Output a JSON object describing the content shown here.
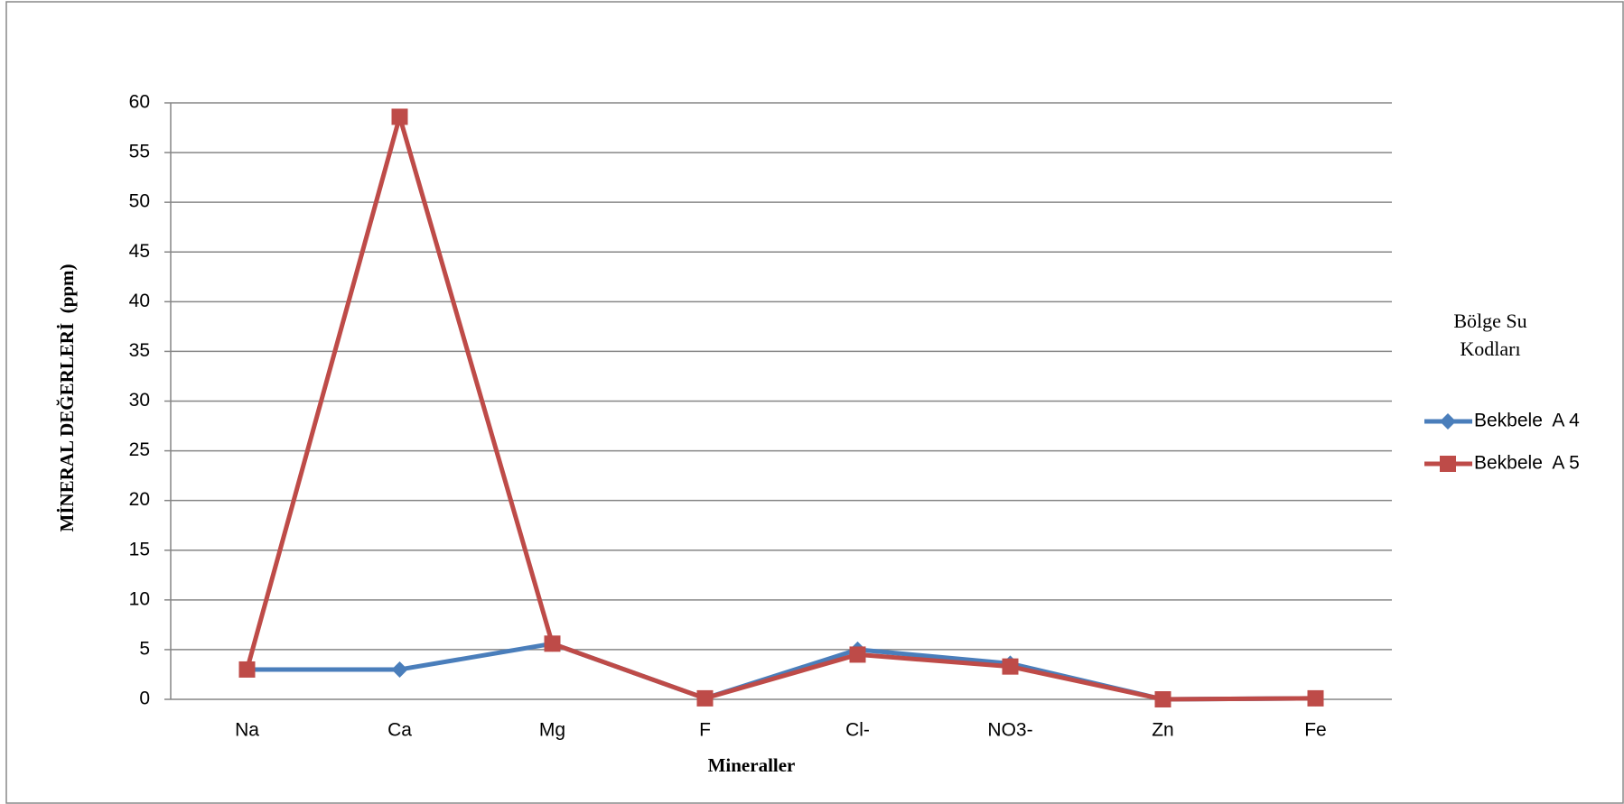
{
  "chart_data": {
    "type": "line",
    "y_label": "MİNERAL DEĞERLERİ  (ppm)",
    "x_label": "Mineraller",
    "legend_title": "Bölge Su Kodları",
    "legend": "right",
    "grid": true,
    "categories": [
      "Na",
      "Ca",
      "Mg",
      "F",
      "Cl-",
      "NO3-",
      "Zn",
      "Fe"
    ],
    "series": [
      {
        "name": "Bekbele  A 4",
        "color": "#4a7ebb",
        "marker": "diamond",
        "values": [
          3,
          3,
          5.6,
          0.1,
          5.0,
          3.6,
          0,
          0.1
        ]
      },
      {
        "name": "Bekbele  A 5",
        "color": "#be4b48",
        "marker": "square",
        "values": [
          3,
          58.6,
          5.6,
          0.1,
          4.5,
          3.3,
          0,
          0.1
        ]
      }
    ],
    "ylim": [
      0,
      60
    ],
    "yticks": [
      0,
      5,
      10,
      15,
      20,
      25,
      30,
      35,
      40,
      45,
      50,
      55,
      60
    ]
  }
}
